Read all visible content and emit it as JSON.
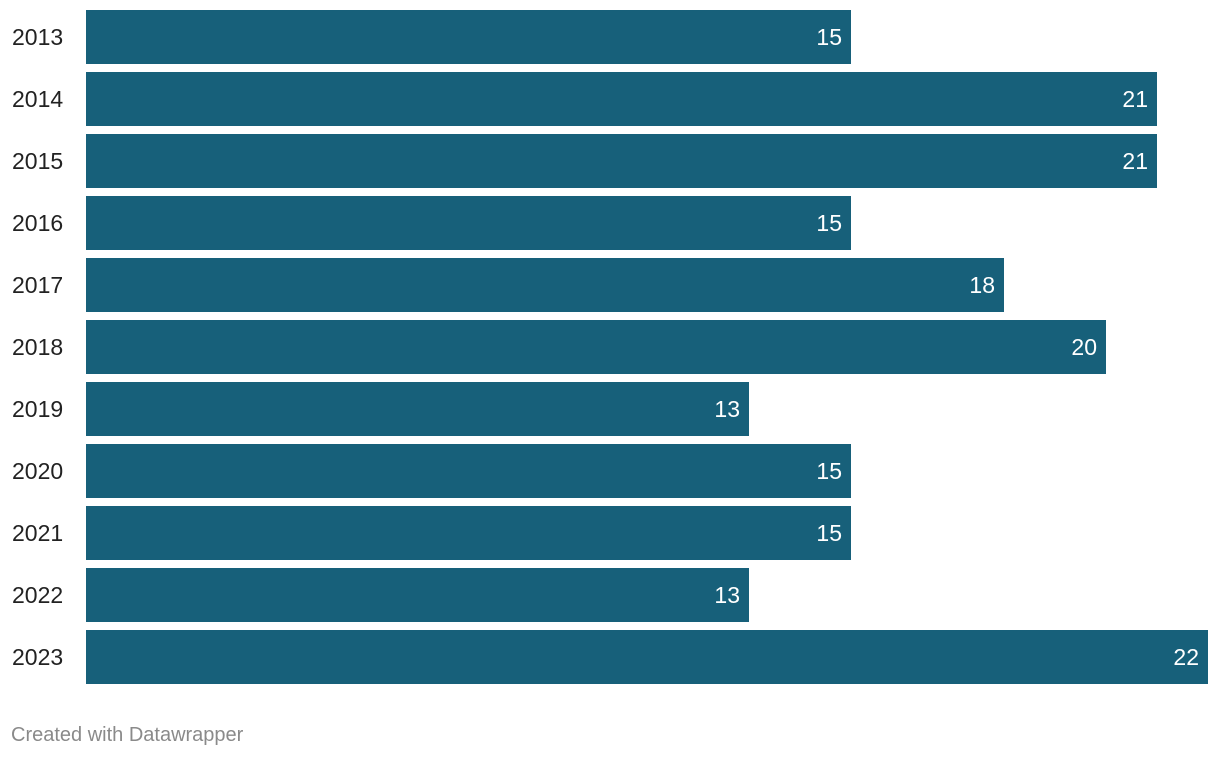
{
  "chart_data": {
    "type": "bar",
    "orientation": "horizontal",
    "title": "",
    "xlabel": "",
    "ylabel": "",
    "xlim": [
      0,
      22
    ],
    "grid": false,
    "categories": [
      "2013",
      "2014",
      "2015",
      "2016",
      "2017",
      "2018",
      "2019",
      "2020",
      "2021",
      "2022",
      "2023"
    ],
    "values": [
      15,
      21,
      21,
      15,
      18,
      20,
      13,
      15,
      15,
      13,
      22
    ],
    "bar_color": "#17607a",
    "value_label_color": "#ffffff"
  },
  "footer": {
    "credit": "Created with Datawrapper"
  }
}
